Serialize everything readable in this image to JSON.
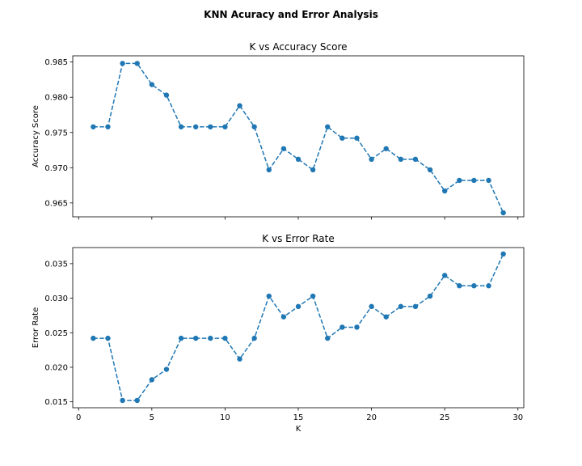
{
  "figure": {
    "suptitle": "KNN Acuracy and Error Analysis"
  },
  "chart_data": [
    {
      "type": "line",
      "title": "K vs Accuracy Score",
      "xlabel": "",
      "ylabel": "Accuracy Score",
      "x": [
        1,
        2,
        3,
        4,
        5,
        6,
        7,
        8,
        9,
        10,
        11,
        12,
        13,
        14,
        15,
        16,
        17,
        18,
        19,
        20,
        21,
        22,
        23,
        24,
        25,
        26,
        27,
        28,
        29
      ],
      "series": [
        {
          "values": [
            0.9758,
            0.9758,
            0.9848,
            0.9848,
            0.9818,
            0.9803,
            0.9758,
            0.9758,
            0.9758,
            0.9758,
            0.9788,
            0.9758,
            0.9697,
            0.9727,
            0.9712,
            0.9697,
            0.9758,
            0.9742,
            0.9742,
            0.9712,
            0.9727,
            0.9712,
            0.9712,
            0.9697,
            0.9667,
            0.9682,
            0.9682,
            0.9682,
            0.9636
          ],
          "color": "#1f77b4",
          "linestyle": "dashed",
          "marker": "o"
        }
      ],
      "xlim": [
        -0.4,
        30.4
      ],
      "ylim": [
        0.96303,
        0.98588
      ],
      "xticks": [
        0,
        5,
        10,
        15,
        20,
        25,
        30
      ],
      "xticklabels_visible": false,
      "yticks": [
        0.965,
        0.97,
        0.975,
        0.98,
        0.985
      ],
      "yticklabels": [
        "0.965",
        "0.970",
        "0.975",
        "0.980",
        "0.985"
      ],
      "grid": false
    },
    {
      "type": "line",
      "title": "K vs Error Rate",
      "xlabel": "K",
      "ylabel": "Error Rate",
      "x": [
        1,
        2,
        3,
        4,
        5,
        6,
        7,
        8,
        9,
        10,
        11,
        12,
        13,
        14,
        15,
        16,
        17,
        18,
        19,
        20,
        21,
        22,
        23,
        24,
        25,
        26,
        27,
        28,
        29
      ],
      "series": [
        {
          "values": [
            0.0242,
            0.0242,
            0.0152,
            0.0152,
            0.0182,
            0.0197,
            0.0242,
            0.0242,
            0.0242,
            0.0242,
            0.0212,
            0.0242,
            0.0303,
            0.0273,
            0.0288,
            0.0303,
            0.0242,
            0.0258,
            0.0258,
            0.0288,
            0.0273,
            0.0288,
            0.0288,
            0.0303,
            0.0333,
            0.0318,
            0.0318,
            0.0318,
            0.0364
          ],
          "color": "#1f77b4",
          "linestyle": "dashed",
          "marker": "o"
        }
      ],
      "xlim": [
        -0.4,
        30.4
      ],
      "ylim": [
        0.01414,
        0.03733
      ],
      "xticks": [
        0,
        5,
        10,
        15,
        20,
        25,
        30
      ],
      "xticklabels": [
        "0",
        "5",
        "10",
        "15",
        "20",
        "25",
        "30"
      ],
      "yticks": [
        0.015,
        0.02,
        0.025,
        0.03,
        0.035
      ],
      "yticklabels": [
        "0.015",
        "0.020",
        "0.025",
        "0.030",
        "0.035"
      ],
      "grid": false
    }
  ]
}
